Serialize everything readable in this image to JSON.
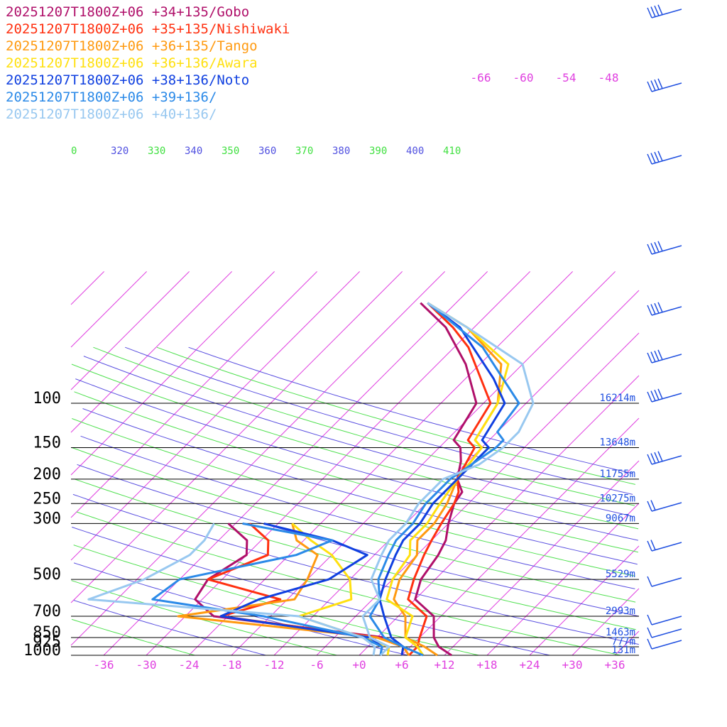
{
  "chart_data": {
    "type": "line",
    "title": "",
    "xlabel": "",
    "ylabel": "",
    "y_scale": "log-pressure",
    "x_range": [
      -40,
      40
    ],
    "p_range": [
      1000,
      100
    ],
    "pressure_ticks": [
      {
        "p": 100,
        "label": "100"
      },
      {
        "p": 150,
        "label": "150"
      },
      {
        "p": 200,
        "label": "200"
      },
      {
        "p": 250,
        "label": "250"
      },
      {
        "p": 300,
        "label": "300"
      },
      {
        "p": 500,
        "label": "500"
      },
      {
        "p": 700,
        "label": "700"
      },
      {
        "p": 850,
        "label": "850"
      },
      {
        "p": 925,
        "label": "925"
      },
      {
        "p": 1000,
        "label": "1000"
      }
    ],
    "height_labels": [
      {
        "p": 100,
        "label": "16214m"
      },
      {
        "p": 150,
        "label": "13648m"
      },
      {
        "p": 200,
        "label": "11755m"
      },
      {
        "p": 250,
        "label": "10275m"
      },
      {
        "p": 300,
        "label": "9067m"
      },
      {
        "p": 500,
        "label": "5529m"
      },
      {
        "p": 700,
        "label": "2993m"
      },
      {
        "p": 850,
        "label": "1463m"
      },
      {
        "p": 925,
        "label": "777m"
      },
      {
        "p": 1000,
        "label": "131m"
      }
    ],
    "temperature_ticks": [
      {
        "t": -36,
        "label": "-36"
      },
      {
        "t": -30,
        "label": "-30"
      },
      {
        "t": -24,
        "label": "-24"
      },
      {
        "t": -18,
        "label": "-18"
      },
      {
        "t": -12,
        "label": "-12"
      },
      {
        "t": -6,
        "label": "-6"
      },
      {
        "t": 0,
        "label": "+0"
      },
      {
        "t": 6,
        "label": "+6"
      },
      {
        "t": 12,
        "label": "+12"
      },
      {
        "t": 18,
        "label": "+18"
      },
      {
        "t": 24,
        "label": "+24"
      },
      {
        "t": 30,
        "label": "+30"
      },
      {
        "t": 36,
        "label": "+36"
      }
    ],
    "isotherm_labels_top": [
      "-66",
      "-60",
      "-54",
      "-48"
    ],
    "theta_labels": [
      {
        "label": "0",
        "color": "#40e040"
      },
      {
        "label": "320",
        "color": "#5050e0"
      },
      {
        "label": "330",
        "color": "#40e040"
      },
      {
        "label": "340",
        "color": "#5050e0"
      },
      {
        "label": "350",
        "color": "#40e040"
      },
      {
        "label": "360",
        "color": "#5050e0"
      },
      {
        "label": "370",
        "color": "#40e040"
      },
      {
        "label": "380",
        "color": "#5050e0"
      },
      {
        "label": "390",
        "color": "#40e040"
      },
      {
        "label": "400",
        "color": "#5050e0"
      },
      {
        "label": "410",
        "color": "#40e040"
      }
    ],
    "series": [
      {
        "name": "20251207T1800Z+06 +34+135/Gobo",
        "color": "#b0106a",
        "temperature": [
          [
            1000,
            13
          ],
          [
            925,
            10
          ],
          [
            850,
            8
          ],
          [
            700,
            5
          ],
          [
            600,
            0
          ],
          [
            500,
            -2
          ],
          [
            400,
            -3
          ],
          [
            350,
            -4
          ],
          [
            300,
            -6
          ],
          [
            250,
            -8
          ],
          [
            225,
            -8.5
          ],
          [
            200,
            -11
          ],
          [
            170,
            -13
          ],
          [
            150,
            -15
          ],
          [
            140,
            -17
          ],
          [
            100,
            -19
          ],
          [
            70,
            -26
          ],
          [
            50,
            -34
          ],
          [
            40,
            -41
          ]
        ],
        "dewpoint": [
          [
            1000,
            6
          ],
          [
            925,
            5
          ],
          [
            850,
            1
          ],
          [
            700,
            -26
          ],
          [
            600,
            -31
          ],
          [
            500,
            -32
          ],
          [
            400,
            -30
          ],
          [
            350,
            -32
          ],
          [
            300,
            -37
          ]
        ]
      },
      {
        "name": "20251207T1800Z+06 +35+135/Nishiwaki",
        "color": "#ff3010",
        "temperature": [
          [
            1000,
            7
          ],
          [
            925,
            7
          ],
          [
            850,
            6
          ],
          [
            700,
            4
          ],
          [
            600,
            -1
          ],
          [
            500,
            -3
          ],
          [
            400,
            -5
          ],
          [
            350,
            -6
          ],
          [
            300,
            -7
          ],
          [
            250,
            -8
          ],
          [
            225,
            -9
          ],
          [
            200,
            -11
          ],
          [
            150,
            -13
          ],
          [
            140,
            -15
          ],
          [
            100,
            -17
          ],
          [
            60,
            -28
          ],
          [
            50,
            -33
          ],
          [
            40,
            -40
          ]
        ],
        "dewpoint": [
          [
            1000,
            6
          ],
          [
            925,
            5
          ],
          [
            850,
            0
          ],
          [
            700,
            -25
          ],
          [
            600,
            -19
          ],
          [
            500,
            -32
          ],
          [
            400,
            -27
          ],
          [
            350,
            -29
          ],
          [
            300,
            -34
          ]
        ]
      },
      {
        "name": "20251207T1800Z+06 +36+135/Tango",
        "color": "#ff9a10",
        "temperature": [
          [
            1000,
            11
          ],
          [
            925,
            8
          ],
          [
            850,
            4
          ],
          [
            700,
            1
          ],
          [
            600,
            -3
          ],
          [
            500,
            -5
          ],
          [
            400,
            -6
          ],
          [
            350,
            -8
          ],
          [
            300,
            -8
          ],
          [
            250,
            -9
          ],
          [
            200,
            -11
          ],
          [
            150,
            -12
          ],
          [
            140,
            -14
          ],
          [
            100,
            -16
          ],
          [
            70,
            -21
          ],
          [
            50,
            -31
          ],
          [
            40,
            -40
          ]
        ],
        "dewpoint": [
          [
            1000,
            7
          ],
          [
            925,
            5
          ],
          [
            850,
            0
          ],
          [
            700,
            -31
          ],
          [
            600,
            -17
          ],
          [
            500,
            -18
          ],
          [
            400,
            -20
          ],
          [
            350,
            -25
          ],
          [
            300,
            -28
          ]
        ]
      },
      {
        "name": "20251207T1800Z+06 +36+136/Awara",
        "color": "#ffe010",
        "temperature": [
          [
            1000,
            9
          ],
          [
            925,
            7
          ],
          [
            850,
            4
          ],
          [
            700,
            2
          ],
          [
            600,
            -4
          ],
          [
            500,
            -6
          ],
          [
            400,
            -7
          ],
          [
            350,
            -9
          ],
          [
            300,
            -9
          ],
          [
            250,
            -10
          ],
          [
            200,
            -11
          ],
          [
            150,
            -12
          ],
          [
            140,
            -14
          ],
          [
            100,
            -16
          ],
          [
            70,
            -20
          ],
          [
            50,
            -31
          ],
          [
            40,
            -40
          ]
        ],
        "dewpoint": [
          [
            1000,
            4
          ],
          [
            925,
            3
          ],
          [
            850,
            -2
          ],
          [
            700,
            -14
          ],
          [
            600,
            -9
          ],
          [
            500,
            -12
          ],
          [
            400,
            -18
          ],
          [
            350,
            -23
          ],
          [
            300,
            -28
          ]
        ]
      },
      {
        "name": "20251207T1800Z+06 +38+136/Noto",
        "color": "#1040e0",
        "temperature": [
          [
            1000,
            6
          ],
          [
            925,
            5
          ],
          [
            850,
            2
          ],
          [
            700,
            -2
          ],
          [
            600,
            -5
          ],
          [
            500,
            -7
          ],
          [
            400,
            -9
          ],
          [
            350,
            -10
          ],
          [
            300,
            -10
          ],
          [
            250,
            -11
          ],
          [
            200,
            -11
          ],
          [
            170,
            -11
          ],
          [
            150,
            -11
          ],
          [
            140,
            -13
          ],
          [
            100,
            -15
          ],
          [
            80,
            -20
          ],
          [
            50,
            -32
          ],
          [
            40,
            -40
          ]
        ],
        "dewpoint": [
          [
            1000,
            3
          ],
          [
            925,
            2
          ],
          [
            850,
            -1
          ],
          [
            700,
            -25
          ],
          [
            600,
            -22
          ],
          [
            500,
            -15
          ],
          [
            400,
            -13
          ],
          [
            350,
            -20
          ],
          [
            300,
            -32
          ]
        ]
      },
      {
        "name": "20251207T1800Z+06 +39+136/",
        "color": "#2b8ae8",
        "temperature": [
          [
            1000,
            9
          ],
          [
            925,
            5
          ],
          [
            850,
            1
          ],
          [
            700,
            -4
          ],
          [
            600,
            -5
          ],
          [
            500,
            -8
          ],
          [
            400,
            -10
          ],
          [
            350,
            -11
          ],
          [
            300,
            -11
          ],
          [
            250,
            -12
          ],
          [
            200,
            -12
          ],
          [
            150,
            -10
          ],
          [
            140,
            -10
          ],
          [
            130,
            -12
          ],
          [
            100,
            -13
          ],
          [
            60,
            -26
          ],
          [
            40,
            -40
          ]
        ],
        "dewpoint": [
          [
            1000,
            3
          ],
          [
            925,
            2
          ],
          [
            850,
            -2
          ],
          [
            700,
            -19
          ],
          [
            600,
            -37
          ],
          [
            500,
            -36
          ],
          [
            400,
            -23
          ],
          [
            350,
            -20
          ],
          [
            300,
            -35
          ]
        ]
      },
      {
        "name": "20251207T1800Z+06 +40+136/",
        "color": "#98c8f0",
        "temperature": [
          [
            1000,
            3
          ],
          [
            925,
            3
          ],
          [
            850,
            -1
          ],
          [
            700,
            -5
          ],
          [
            600,
            -5
          ],
          [
            500,
            -9
          ],
          [
            400,
            -11
          ],
          [
            350,
            -12
          ],
          [
            300,
            -12
          ],
          [
            250,
            -13
          ],
          [
            200,
            -13
          ],
          [
            175,
            -10
          ],
          [
            150,
            -9
          ],
          [
            130,
            -9
          ],
          [
            100,
            -11
          ],
          [
            70,
            -18
          ],
          [
            50,
            -31
          ],
          [
            40,
            -40
          ]
        ],
        "dewpoint": [
          [
            1000,
            2
          ],
          [
            925,
            1
          ],
          [
            850,
            -2
          ],
          [
            700,
            -14
          ],
          [
            600,
            -46
          ],
          [
            500,
            -41
          ],
          [
            400,
            -38
          ],
          [
            350,
            -38
          ],
          [
            300,
            -39
          ]
        ]
      }
    ]
  }
}
